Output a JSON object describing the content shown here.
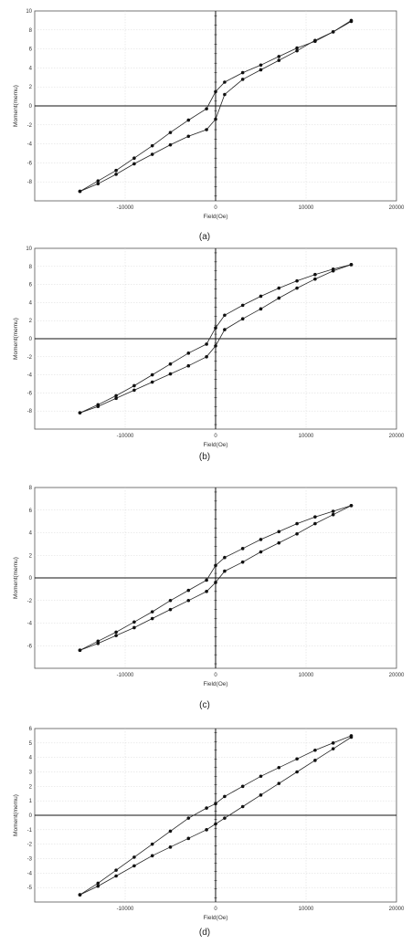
{
  "chart_data": [
    {
      "panel_label": "(a)",
      "type": "scatter",
      "xlabel": "Field(Oe)",
      "ylabel": "Moment(memu)",
      "xlim": [
        -20000,
        20000
      ],
      "ylim": [
        -10,
        10
      ],
      "xticks": [
        -10000,
        0,
        10000,
        20000
      ],
      "yticks": [
        -8,
        -6,
        -4,
        -2,
        0,
        2,
        4,
        6,
        8,
        10
      ],
      "grid": true,
      "series": [
        {
          "x": [
            -15000,
            -13000,
            -11000,
            -9000,
            -7000,
            -5000,
            -3000,
            -1000,
            0,
            1000,
            3000,
            5000,
            7000,
            9000,
            11000,
            13000,
            15000
          ],
          "y": [
            -9.0,
            -8.2,
            -7.2,
            -6.1,
            -5.1,
            -4.1,
            -3.2,
            -2.5,
            -1.4,
            1.2,
            2.8,
            3.8,
            4.8,
            5.8,
            6.9,
            7.8,
            8.9
          ]
        },
        {
          "x": [
            -15000,
            -13000,
            -11000,
            -9000,
            -7000,
            -5000,
            -3000,
            -1000,
            0,
            1000,
            3000,
            5000,
            7000,
            9000,
            11000,
            13000,
            15000
          ],
          "y": [
            -9.0,
            -7.9,
            -6.8,
            -5.5,
            -4.2,
            -2.8,
            -1.5,
            -0.3,
            1.5,
            2.5,
            3.5,
            4.3,
            5.2,
            6.1,
            6.8,
            7.8,
            9.0
          ]
        }
      ]
    },
    {
      "panel_label": "(b)",
      "type": "scatter",
      "xlabel": "Field(Oe)",
      "ylabel": "Moment(memu)",
      "xlim": [
        -20000,
        20000
      ],
      "ylim": [
        -10,
        10
      ],
      "xticks": [
        -10000,
        0,
        10000,
        20000
      ],
      "yticks": [
        -8,
        -6,
        -4,
        -2,
        0,
        2,
        4,
        6,
        8,
        10
      ],
      "grid": true,
      "series": [
        {
          "x": [
            -15000,
            -13000,
            -11000,
            -9000,
            -7000,
            -5000,
            -3000,
            -1000,
            0,
            1000,
            3000,
            5000,
            7000,
            9000,
            11000,
            13000,
            15000
          ],
          "y": [
            -8.2,
            -7.5,
            -6.6,
            -5.7,
            -4.8,
            -3.9,
            -3.0,
            -2.0,
            -0.8,
            1.0,
            2.2,
            3.3,
            4.5,
            5.6,
            6.6,
            7.5,
            8.2
          ]
        },
        {
          "x": [
            -15000,
            -13000,
            -11000,
            -9000,
            -7000,
            -5000,
            -3000,
            -1000,
            0,
            1000,
            3000,
            5000,
            7000,
            9000,
            11000,
            13000,
            15000
          ],
          "y": [
            -8.2,
            -7.3,
            -6.3,
            -5.2,
            -4.0,
            -2.8,
            -1.6,
            -0.6,
            1.2,
            2.6,
            3.7,
            4.7,
            5.6,
            6.4,
            7.1,
            7.7,
            8.2
          ]
        }
      ]
    },
    {
      "panel_label": "(c)",
      "type": "scatter",
      "xlabel": "Field(Oe)",
      "ylabel": "Moment(memu)",
      "xlim": [
        -20000,
        20000
      ],
      "ylim": [
        -8,
        8
      ],
      "xticks": [
        -10000,
        0,
        10000,
        20000
      ],
      "yticks": [
        -6,
        -4,
        -2,
        0,
        2,
        4,
        6,
        8
      ],
      "grid": true,
      "series": [
        {
          "x": [
            -15000,
            -13000,
            -11000,
            -9000,
            -7000,
            -5000,
            -3000,
            -1000,
            0,
            1000,
            3000,
            5000,
            7000,
            9000,
            11000,
            13000,
            15000
          ],
          "y": [
            -6.4,
            -5.8,
            -5.1,
            -4.4,
            -3.6,
            -2.8,
            -2.0,
            -1.2,
            -0.4,
            0.6,
            1.4,
            2.3,
            3.1,
            3.9,
            4.8,
            5.6,
            6.4
          ]
        },
        {
          "x": [
            -15000,
            -13000,
            -11000,
            -9000,
            -7000,
            -5000,
            -3000,
            -1000,
            0,
            1000,
            3000,
            5000,
            7000,
            9000,
            11000,
            13000,
            15000
          ],
          "y": [
            -6.4,
            -5.6,
            -4.8,
            -3.9,
            -3.0,
            -2.0,
            -1.1,
            -0.2,
            1.1,
            1.8,
            2.6,
            3.4,
            4.1,
            4.8,
            5.4,
            5.9,
            6.4
          ]
        }
      ]
    },
    {
      "panel_label": "(d)",
      "type": "scatter",
      "xlabel": "Field(Oe)",
      "ylabel": "Moment(memu)",
      "xlim": [
        -20000,
        20000
      ],
      "ylim": [
        -6,
        6
      ],
      "xticks": [
        -10000,
        0,
        10000,
        20000
      ],
      "yticks": [
        -5,
        -4,
        -3,
        -2,
        -1,
        0,
        1,
        2,
        3,
        4,
        5,
        6
      ],
      "grid": true,
      "series": [
        {
          "x": [
            -15000,
            -13000,
            -11000,
            -9000,
            -7000,
            -5000,
            -3000,
            -1000,
            0,
            1000,
            3000,
            5000,
            7000,
            9000,
            11000,
            13000,
            15000
          ],
          "y": [
            -5.5,
            -4.9,
            -4.2,
            -3.5,
            -2.8,
            -2.2,
            -1.6,
            -1.0,
            -0.6,
            -0.2,
            0.6,
            1.4,
            2.2,
            3.0,
            3.8,
            4.6,
            5.4
          ]
        },
        {
          "x": [
            -15000,
            -13000,
            -11000,
            -9000,
            -7000,
            -5000,
            -3000,
            -1000,
            0,
            1000,
            3000,
            5000,
            7000,
            9000,
            11000,
            13000,
            15000
          ],
          "y": [
            -5.5,
            -4.7,
            -3.8,
            -2.9,
            -2.0,
            -1.1,
            -0.2,
            0.5,
            0.8,
            1.3,
            2.0,
            2.7,
            3.3,
            3.9,
            4.5,
            5.0,
            5.5
          ]
        }
      ]
    }
  ]
}
